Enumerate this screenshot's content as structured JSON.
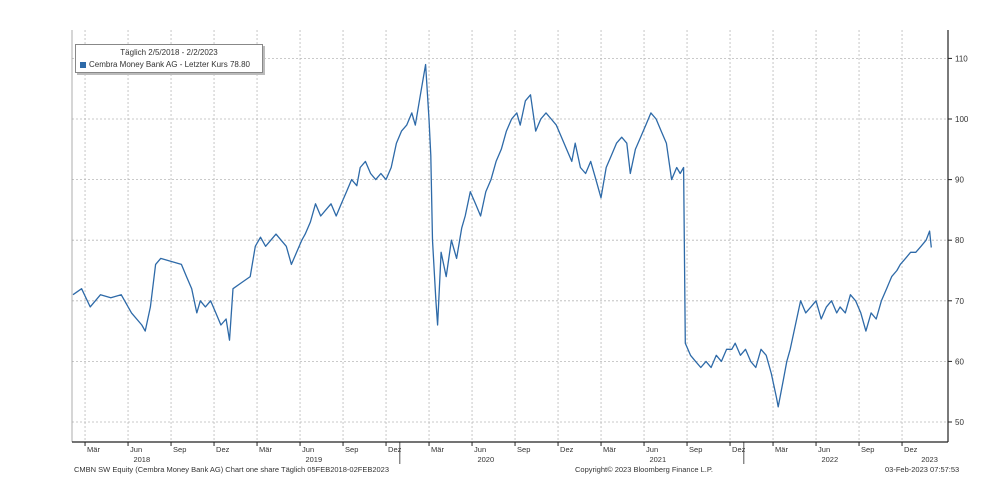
{
  "legend": {
    "header": "Täglich 2/5/2018 - 2/2/2023",
    "entry": "Cembra Money Bank AG - Letzter Kurs 78.80"
  },
  "footer": {
    "left": "CMBN SW Equity (Cembra Money Bank AG) Chart one share  Täglich 05FEB2018-02FEB2023",
    "center": "Copyright© 2023 Bloomberg Finance L.P.",
    "right": "03-Feb-2023 07:57:53"
  },
  "colors": {
    "line": "#2e6aa8",
    "grid": "#b8b8b8",
    "axis": "#222222"
  },
  "chart_data": {
    "type": "line",
    "title": "",
    "xlabel": "",
    "ylabel": "",
    "ylim": [
      48,
      112
    ],
    "xlim": [
      2018.03,
      2023.2
    ],
    "grid": true,
    "legend_position": "top-left",
    "y_axis_side": "right",
    "y_ticks": [
      50,
      60,
      70,
      80,
      90,
      100,
      110
    ],
    "x_ticks": [
      {
        "label": "Mär",
        "x": 2018.17
      },
      {
        "label": "Jun",
        "x": 2018.42
      },
      {
        "label": "Sep",
        "x": 2018.67
      },
      {
        "label": "Dez",
        "x": 2018.92
      },
      {
        "label": "Mär",
        "x": 2019.17
      },
      {
        "label": "Jun",
        "x": 2019.42
      },
      {
        "label": "Sep",
        "x": 2019.67
      },
      {
        "label": "Dez",
        "x": 2019.92
      },
      {
        "label": "Mär",
        "x": 2020.17
      },
      {
        "label": "Jun",
        "x": 2020.42
      },
      {
        "label": "Sep",
        "x": 2020.67
      },
      {
        "label": "Dez",
        "x": 2020.92
      },
      {
        "label": "Mär",
        "x": 2021.17
      },
      {
        "label": "Jun",
        "x": 2021.42
      },
      {
        "label": "Sep",
        "x": 2021.67
      },
      {
        "label": "Dez",
        "x": 2021.92
      },
      {
        "label": "Mär",
        "x": 2022.17
      },
      {
        "label": "Jun",
        "x": 2022.42
      },
      {
        "label": "Sep",
        "x": 2022.67
      },
      {
        "label": "Dez",
        "x": 2022.92
      }
    ],
    "year_labels": [
      {
        "label": "2018",
        "x": 2018.5
      },
      {
        "label": "2019",
        "x": 2019.5
      },
      {
        "label": "2020",
        "x": 2020.5
      },
      {
        "label": "2021",
        "x": 2021.5
      },
      {
        "label": "2022",
        "x": 2022.5
      },
      {
        "label": "2023",
        "x": 2023.08
      }
    ],
    "year_separators": [
      2020.0,
      2022.0
    ],
    "series": [
      {
        "name": "Cembra Money Bank AG - Letzter Kurs",
        "x": [
          2018.1,
          2018.15,
          2018.2,
          2018.26,
          2018.32,
          2018.38,
          2018.44,
          2018.5,
          2018.52,
          2018.55,
          2018.58,
          2018.61,
          2018.67,
          2018.73,
          2018.76,
          2018.79,
          2018.82,
          2018.84,
          2018.87,
          2018.9,
          2018.93,
          2018.96,
          2018.99,
          2019.01,
          2019.03,
          2019.08,
          2019.13,
          2019.16,
          2019.19,
          2019.22,
          2019.25,
          2019.28,
          2019.31,
          2019.34,
          2019.37,
          2019.4,
          2019.43,
          2019.45,
          2019.48,
          2019.51,
          2019.54,
          2019.57,
          2019.6,
          2019.63,
          2019.66,
          2019.69,
          2019.72,
          2019.75,
          2019.77,
          2019.8,
          2019.83,
          2019.86,
          2019.89,
          2019.92,
          2019.95,
          2019.98,
          2020.01,
          2020.04,
          2020.07,
          2020.09,
          2020.12,
          2020.15,
          2020.17,
          2020.18,
          2020.19,
          2020.21,
          2020.22,
          2020.24,
          2020.27,
          2020.3,
          2020.33,
          2020.36,
          2020.38,
          2020.41,
          2020.44,
          2020.47,
          2020.5,
          2020.53,
          2020.56,
          2020.59,
          2020.62,
          2020.65,
          2020.68,
          2020.7,
          2020.73,
          2020.76,
          2020.79,
          2020.82,
          2020.85,
          2020.88,
          2020.91,
          2020.94,
          2020.97,
          2021.0,
          2021.02,
          2021.05,
          2021.08,
          2021.11,
          2021.14,
          2021.17,
          2021.2,
          2021.23,
          2021.26,
          2021.29,
          2021.32,
          2021.34,
          2021.37,
          2021.4,
          2021.43,
          2021.46,
          2021.49,
          2021.52,
          2021.55,
          2021.58,
          2021.61,
          2021.63,
          2021.65,
          2021.66,
          2021.69,
          2021.72,
          2021.75,
          2021.78,
          2021.81,
          2021.84,
          2021.87,
          2021.9,
          2021.93,
          2021.95,
          2021.98,
          2022.01,
          2022.04,
          2022.07,
          2022.1,
          2022.13,
          2022.16,
          2022.19,
          2022.2,
          2022.23,
          2022.25,
          2022.27,
          2022.3,
          2022.33,
          2022.36,
          2022.39,
          2022.42,
          2022.45,
          2022.48,
          2022.51,
          2022.54,
          2022.56,
          2022.59,
          2022.62,
          2022.65,
          2022.68,
          2022.71,
          2022.74,
          2022.77,
          2022.8,
          2022.83,
          2022.86,
          2022.89,
          2022.91,
          2022.94,
          2022.97,
          2023.0,
          2023.03,
          2023.06,
          2023.08,
          2023.09
        ],
        "y": [
          71,
          72,
          69,
          71,
          70.5,
          71,
          68,
          66,
          65,
          69,
          76,
          77,
          76.5,
          76,
          74,
          72,
          68,
          70,
          69,
          70,
          68,
          66,
          67,
          63.5,
          72,
          73,
          74,
          79,
          80.5,
          79,
          80,
          81,
          80,
          79,
          76,
          78,
          80,
          81,
          83,
          86,
          84,
          85,
          86,
          84,
          86,
          88,
          90,
          89,
          92,
          93,
          91,
          90,
          91,
          90,
          92,
          96,
          98,
          99,
          101,
          99,
          104,
          109,
          100,
          94,
          80,
          70,
          66,
          78,
          74,
          80,
          77,
          82,
          84,
          88,
          86,
          84,
          88,
          90,
          93,
          95,
          98,
          100,
          101,
          99,
          103,
          104,
          98,
          100,
          101,
          100,
          99,
          97,
          95,
          93,
          96,
          92,
          91,
          93,
          90,
          87,
          92,
          94,
          96,
          97,
          96,
          91,
          95,
          97,
          99,
          101,
          100,
          98,
          96,
          90,
          92,
          91,
          92,
          63,
          61,
          60,
          59,
          60,
          59,
          61,
          60,
          62,
          62,
          63,
          61,
          62,
          60,
          59,
          62,
          61,
          58,
          54,
          52.5,
          57,
          60,
          62,
          66,
          70,
          68,
          69,
          70,
          67,
          69,
          70,
          68,
          69,
          68,
          71,
          70,
          68,
          65,
          68,
          67,
          70,
          72,
          74,
          75,
          76,
          77,
          78,
          78,
          79,
          80,
          81.5,
          78.8
        ]
      }
    ]
  }
}
